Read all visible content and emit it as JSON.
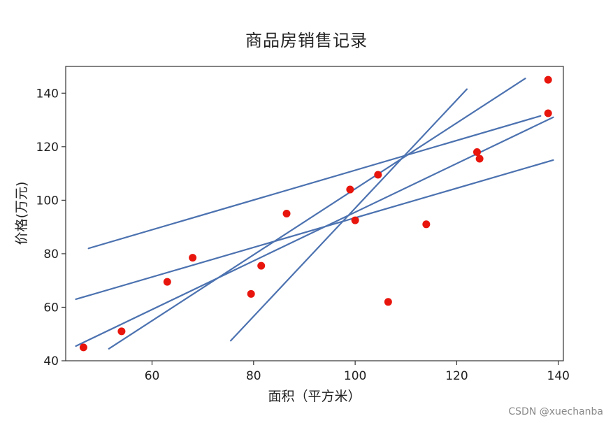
{
  "chart_data": {
    "type": "scatter",
    "title": "商品房销售记录",
    "xlabel": "面积（平方米）",
    "ylabel": "价格(万元)",
    "xlim": [
      43,
      141
    ],
    "ylim": [
      40,
      150
    ],
    "xticks": [
      60,
      80,
      100,
      120,
      140
    ],
    "yticks": [
      40,
      60,
      80,
      100,
      120,
      140
    ],
    "grid": false,
    "colors": {
      "points": "#e8150d",
      "lines": "#4c72b0",
      "axes": "#333333"
    },
    "points": [
      {
        "x": 46.5,
        "y": 45
      },
      {
        "x": 54,
        "y": 51
      },
      {
        "x": 63,
        "y": 69.5
      },
      {
        "x": 68,
        "y": 78.5
      },
      {
        "x": 79.5,
        "y": 65
      },
      {
        "x": 81.5,
        "y": 75.5
      },
      {
        "x": 86.5,
        "y": 95
      },
      {
        "x": 99,
        "y": 104
      },
      {
        "x": 100,
        "y": 92.5
      },
      {
        "x": 104.5,
        "y": 109.5
      },
      {
        "x": 106.5,
        "y": 62
      },
      {
        "x": 114,
        "y": 91
      },
      {
        "x": 124,
        "y": 118
      },
      {
        "x": 124.5,
        "y": 115.5
      },
      {
        "x": 138,
        "y": 145
      },
      {
        "x": 138,
        "y": 132.5
      }
    ],
    "lines": [
      {
        "x1": 47.5,
        "y1": 82,
        "x2": 136.5,
        "y2": 131.5
      },
      {
        "x1": 45,
        "y1": 63,
        "x2": 139,
        "y2": 115
      },
      {
        "x1": 45,
        "y1": 45.5,
        "x2": 139,
        "y2": 131
      },
      {
        "x1": 51.5,
        "y1": 44.5,
        "x2": 133.5,
        "y2": 145.5
      },
      {
        "x1": 75.5,
        "y1": 47.5,
        "x2": 122,
        "y2": 141.5
      }
    ]
  },
  "watermark": "CSDN @xuechanba"
}
